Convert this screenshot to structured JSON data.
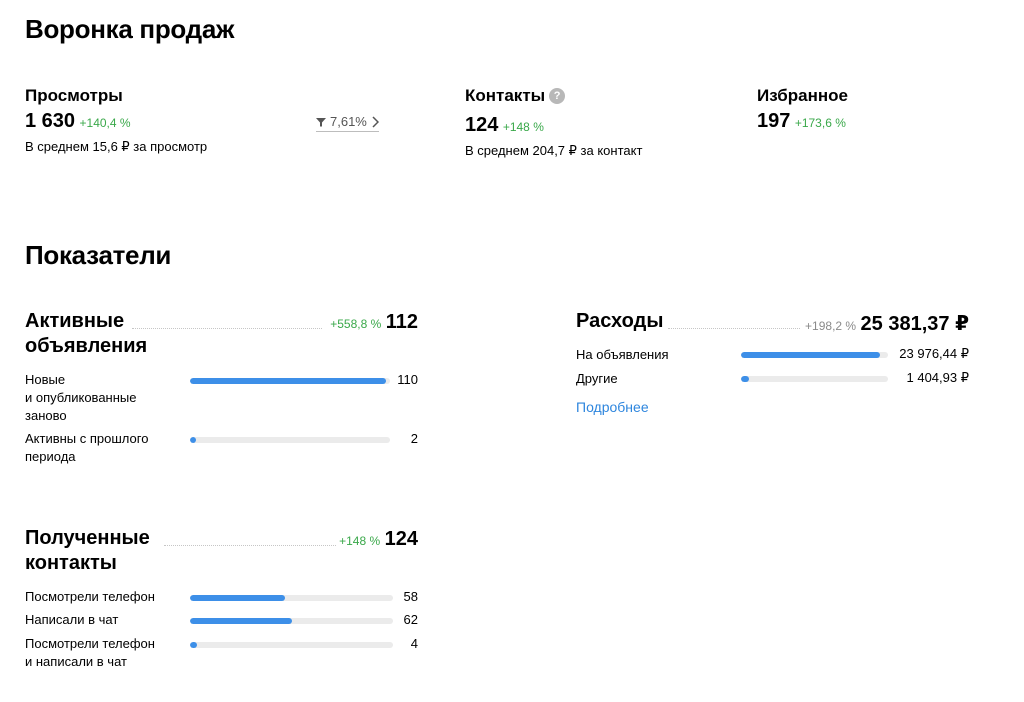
{
  "funnel": {
    "title": "Воронка продаж",
    "views": {
      "label": "Просмотры",
      "value": "1 630",
      "delta": "+140,4 %",
      "note": "В среднем 15,6 ₽ за просмотр",
      "conversion": "7,61%"
    },
    "contacts": {
      "label": "Контакты",
      "help": "?",
      "value": "124",
      "delta": "+148 %",
      "note": "В среднем 204,7 ₽ за контакт"
    },
    "favorites": {
      "label": "Избранное",
      "value": "197",
      "delta": "+173,6 %"
    }
  },
  "metrics": {
    "title": "Показатели",
    "active": {
      "title_line1": "Активные",
      "title_line2": "объявления",
      "delta": "+558,8 %",
      "total": "112",
      "max": 112,
      "rows": [
        {
          "lines": [
            "Новые",
            "и опубликованные",
            "заново"
          ],
          "value": 110
        },
        {
          "lines": [
            "Активны с прошлого",
            "периода"
          ],
          "value": 2
        }
      ]
    },
    "expenses": {
      "title": "Расходы",
      "delta": "+198,2 %",
      "total": "25 381,37 ₽",
      "rows": [
        {
          "label": "На объявления",
          "value": "23 976,44 ₽",
          "share": 0.945
        },
        {
          "label": "Другие",
          "value": "1 404,93 ₽",
          "share": 0.055
        }
      ],
      "link": "Подробнее"
    },
    "contacts": {
      "title_line1": "Полученные",
      "title_line2": "контакты",
      "delta": "+148 %",
      "total": "124",
      "max": 124,
      "rows": [
        {
          "lines": [
            "Посмотрели телефон"
          ],
          "value": 58
        },
        {
          "lines": [
            "Написали в чат"
          ],
          "value": 62
        },
        {
          "lines": [
            "Посмотрели телефон",
            "и написали в чат"
          ],
          "value": 4
        }
      ]
    }
  },
  "colors": {
    "accent": "#3d8fe8",
    "positive": "#3aa84a",
    "track": "#ebebeb"
  }
}
